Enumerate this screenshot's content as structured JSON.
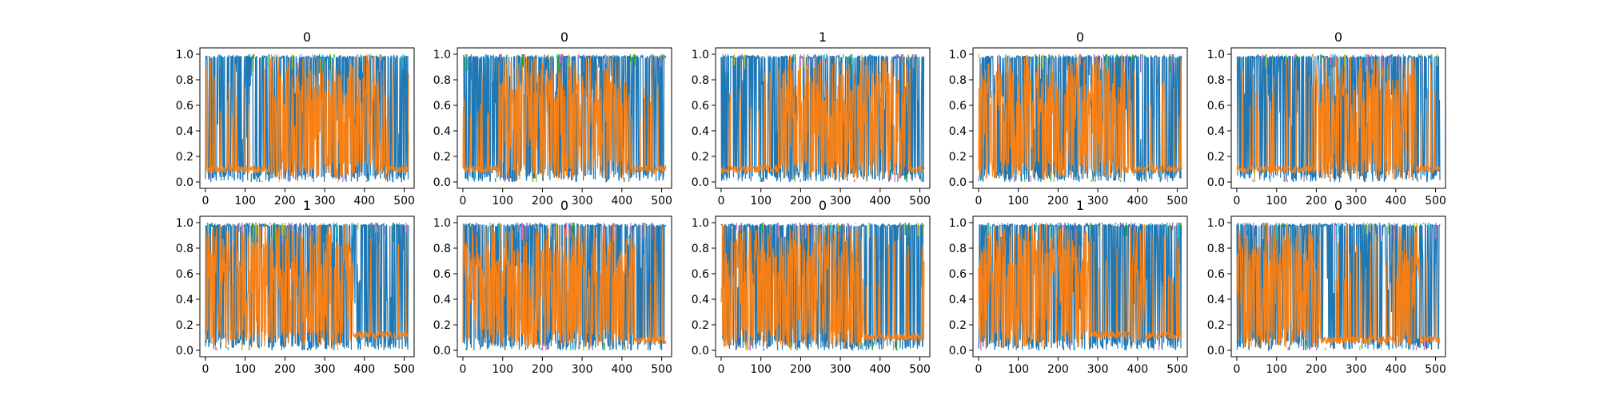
{
  "figure": {
    "layout": {
      "rows": 2,
      "cols": 5
    }
  },
  "palette": {
    "orange": "#ff7f0e",
    "blue": "#1f77b4",
    "cyan": "#17becf",
    "olive": "#bcbd22",
    "green": "#2ca02c",
    "purple": "#9467bd",
    "pink": "#e377c2"
  },
  "chart_data": [
    {
      "type": "line",
      "title": "0",
      "xlim": [
        -14,
        525
      ],
      "ylim": [
        -0.05,
        1.05
      ],
      "xticks": [
        0,
        100,
        200,
        300,
        400,
        500
      ],
      "yticks": [
        0.0,
        0.2,
        0.4,
        0.6,
        0.8,
        1.0
      ],
      "xtick_labels": [
        "0",
        "100",
        "200",
        "300",
        "400",
        "500"
      ],
      "ytick_labels": [
        "0.0",
        "0.2",
        "0.4",
        "0.6",
        "0.8",
        "1.0"
      ],
      "series": [
        {
          "color": "#1f77b4",
          "level": 0.85,
          "ranges": [
            [
              0,
              511
            ]
          ]
        },
        {
          "color": "#ff7f0e",
          "level": 0.1,
          "ranges": [
            [
              0,
              511
            ]
          ],
          "active": [
            [
              160,
              460
            ]
          ]
        }
      ]
    },
    {
      "type": "line",
      "title": "0",
      "xlim": [
        -14,
        525
      ],
      "ylim": [
        -0.05,
        1.05
      ],
      "xticks": [
        0,
        100,
        200,
        300,
        400,
        500
      ],
      "yticks": [
        0.0,
        0.2,
        0.4,
        0.6,
        0.8,
        1.0
      ],
      "xtick_labels": [
        "0",
        "100",
        "200",
        "300",
        "400",
        "500"
      ],
      "ytick_labels": [
        "0.0",
        "0.2",
        "0.4",
        "0.6",
        "0.8",
        "1.0"
      ],
      "series": [
        {
          "color": "#1f77b4",
          "level": 0.85,
          "ranges": [
            [
              0,
              511
            ]
          ]
        },
        {
          "color": "#ff7f0e",
          "level": 0.1,
          "ranges": [
            [
              0,
              511
            ]
          ],
          "active": [
            [
              90,
              420
            ]
          ]
        }
      ]
    },
    {
      "type": "line",
      "title": "1",
      "xlim": [
        -14,
        525
      ],
      "ylim": [
        -0.05,
        1.05
      ],
      "xticks": [
        0,
        100,
        200,
        300,
        400,
        500
      ],
      "yticks": [
        0.0,
        0.2,
        0.4,
        0.6,
        0.8,
        1.0
      ],
      "xtick_labels": [
        "0",
        "100",
        "200",
        "300",
        "400",
        "500"
      ],
      "ytick_labels": [
        "0.0",
        "0.2",
        "0.4",
        "0.6",
        "0.8",
        "1.0"
      ],
      "series": [
        {
          "color": "#1f77b4",
          "level": 0.85,
          "ranges": [
            [
              0,
              511
            ]
          ]
        },
        {
          "color": "#ff7f0e",
          "level": 0.1,
          "ranges": [
            [
              0,
              511
            ]
          ],
          "active": [
            [
              150,
              470
            ]
          ]
        }
      ]
    },
    {
      "type": "line",
      "title": "0",
      "xlim": [
        -14,
        525
      ],
      "ylim": [
        -0.05,
        1.05
      ],
      "xticks": [
        0,
        100,
        200,
        300,
        400,
        500
      ],
      "yticks": [
        0.0,
        0.2,
        0.4,
        0.6,
        0.8,
        1.0
      ],
      "xtick_labels": [
        "0",
        "100",
        "200",
        "300",
        "400",
        "500"
      ],
      "ytick_labels": [
        "0.0",
        "0.2",
        "0.4",
        "0.6",
        "0.8",
        "1.0"
      ],
      "series": [
        {
          "color": "#1f77b4",
          "level": 0.85,
          "ranges": [
            [
              0,
              511
            ]
          ]
        },
        {
          "color": "#ff7f0e",
          "level": 0.1,
          "ranges": [
            [
              0,
              511
            ]
          ],
          "active": [
            [
              0,
              360
            ]
          ]
        }
      ]
    },
    {
      "type": "line",
      "title": "0",
      "xlim": [
        -14,
        525
      ],
      "ylim": [
        -0.05,
        1.05
      ],
      "xticks": [
        0,
        100,
        200,
        300,
        400,
        500
      ],
      "yticks": [
        0.0,
        0.2,
        0.4,
        0.6,
        0.8,
        1.0
      ],
      "xtick_labels": [
        "0",
        "100",
        "200",
        "300",
        "400",
        "500"
      ],
      "ytick_labels": [
        "0.0",
        "0.2",
        "0.4",
        "0.6",
        "0.8",
        "1.0"
      ],
      "series": [
        {
          "color": "#1f77b4",
          "level": 0.85,
          "ranges": [
            [
              0,
              511
            ]
          ]
        },
        {
          "color": "#ff7f0e",
          "level": 0.1,
          "ranges": [
            [
              0,
              511
            ]
          ],
          "active": [
            [
              200,
              450
            ]
          ]
        }
      ]
    },
    {
      "type": "line",
      "title": "1",
      "xlim": [
        -14,
        525
      ],
      "ylim": [
        -0.05,
        1.05
      ],
      "xticks": [
        0,
        100,
        200,
        300,
        400,
        500
      ],
      "yticks": [
        0.0,
        0.2,
        0.4,
        0.6,
        0.8,
        1.0
      ],
      "xtick_labels": [
        "0",
        "100",
        "200",
        "300",
        "400",
        "500"
      ],
      "ytick_labels": [
        "0.0",
        "0.2",
        "0.4",
        "0.6",
        "0.8",
        "1.0"
      ],
      "series": [
        {
          "color": "#1f77b4",
          "level": 0.85,
          "ranges": [
            [
              0,
              511
            ]
          ]
        },
        {
          "color": "#ff7f0e",
          "level": 0.12,
          "ranges": [
            [
              0,
              511
            ]
          ],
          "active": [
            [
              0,
              370
            ]
          ]
        }
      ]
    },
    {
      "type": "line",
      "title": "0",
      "xlim": [
        -14,
        525
      ],
      "ylim": [
        -0.05,
        1.05
      ],
      "xticks": [
        0,
        100,
        200,
        300,
        400,
        500
      ],
      "yticks": [
        0.0,
        0.2,
        0.4,
        0.6,
        0.8,
        1.0
      ],
      "xtick_labels": [
        "0",
        "100",
        "200",
        "300",
        "400",
        "500"
      ],
      "ytick_labels": [
        "0.0",
        "0.2",
        "0.4",
        "0.6",
        "0.8",
        "1.0"
      ],
      "series": [
        {
          "color": "#1f77b4",
          "level": 0.85,
          "ranges": [
            [
              0,
              511
            ]
          ]
        },
        {
          "color": "#ff7f0e",
          "level": 0.08,
          "ranges": [
            [
              0,
              511
            ]
          ],
          "active": [
            [
              0,
              430
            ]
          ]
        }
      ]
    },
    {
      "type": "line",
      "title": "0",
      "xlim": [
        -14,
        525
      ],
      "ylim": [
        -0.05,
        1.05
      ],
      "xticks": [
        0,
        100,
        200,
        300,
        400,
        500
      ],
      "yticks": [
        0.0,
        0.2,
        0.4,
        0.6,
        0.8,
        1.0
      ],
      "xtick_labels": [
        "0",
        "100",
        "200",
        "300",
        "400",
        "500"
      ],
      "ytick_labels": [
        "0.0",
        "0.2",
        "0.4",
        "0.6",
        "0.8",
        "1.0"
      ],
      "series": [
        {
          "color": "#1f77b4",
          "level": 0.85,
          "ranges": [
            [
              0,
              511
            ]
          ]
        },
        {
          "color": "#ff7f0e",
          "level": 0.1,
          "ranges": [
            [
              0,
              511
            ]
          ],
          "active": [
            [
              0,
              360
            ]
          ]
        }
      ]
    },
    {
      "type": "line",
      "title": "1",
      "xlim": [
        -14,
        525
      ],
      "ylim": [
        -0.05,
        1.05
      ],
      "xticks": [
        0,
        100,
        200,
        300,
        400,
        500
      ],
      "yticks": [
        0.0,
        0.2,
        0.4,
        0.6,
        0.8,
        1.0
      ],
      "xtick_labels": [
        "0",
        "100",
        "200",
        "300",
        "400",
        "500"
      ],
      "ytick_labels": [
        "0.0",
        "0.2",
        "0.4",
        "0.6",
        "0.8",
        "1.0"
      ],
      "series": [
        {
          "color": "#1f77b4",
          "level": 0.85,
          "ranges": [
            [
              0,
              511
            ]
          ]
        },
        {
          "color": "#ff7f0e",
          "level": 0.12,
          "ranges": [
            [
              0,
              511
            ]
          ],
          "active": [
            [
              0,
              280
            ],
            [
              380,
              420
            ]
          ]
        }
      ]
    },
    {
      "type": "line",
      "title": "0",
      "xlim": [
        -14,
        525
      ],
      "ylim": [
        -0.05,
        1.05
      ],
      "xticks": [
        0,
        100,
        200,
        300,
        400,
        500
      ],
      "yticks": [
        0.0,
        0.2,
        0.4,
        0.6,
        0.8,
        1.0
      ],
      "xtick_labels": [
        "0",
        "100",
        "200",
        "300",
        "400",
        "500"
      ],
      "ytick_labels": [
        "0.0",
        "0.2",
        "0.4",
        "0.6",
        "0.8",
        "1.0"
      ],
      "series": [
        {
          "color": "#1f77b4",
          "level": 0.85,
          "ranges": [
            [
              0,
              511
            ]
          ]
        },
        {
          "color": "#ff7f0e",
          "level": 0.08,
          "ranges": [
            [
              0,
              511
            ]
          ],
          "active": [
            [
              0,
              210
            ],
            [
              400,
              460
            ]
          ]
        }
      ]
    }
  ]
}
